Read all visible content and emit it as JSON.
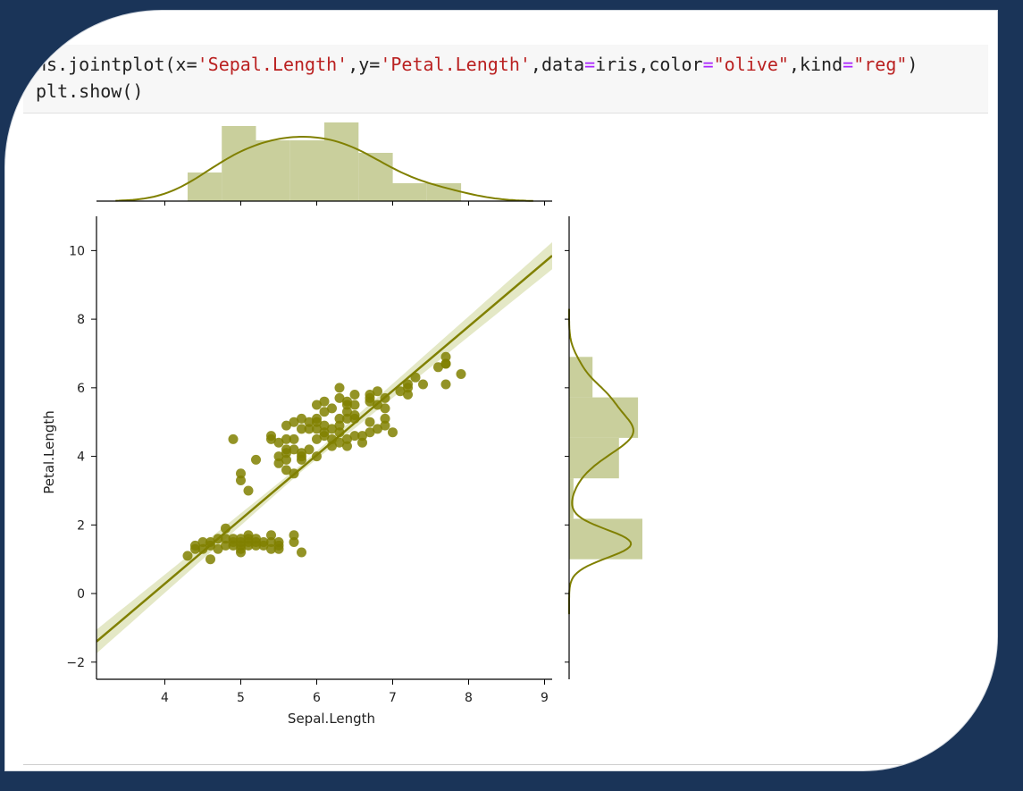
{
  "code": {
    "line1": {
      "fn_prefix": "ns.jointplot(x=",
      "x_arg": "'Sepal.Length'",
      "sep1": ",y=",
      "y_arg": "'Petal.Length'",
      "sep2": ",data",
      "eq1": "=",
      "data_arg": "iris",
      "sep3": ",color",
      "eq2": "=",
      "color_arg": "\"olive\"",
      "sep4": ",kind",
      "eq3": "=",
      "kind_arg": "\"reg\"",
      "suffix": ")"
    },
    "line2": "plt.show()"
  },
  "colors": {
    "accent": "#808000",
    "fill": "#c9cf9c",
    "band": "#e4e8c6",
    "background": "#1a3458"
  },
  "chart_data": {
    "type": "scatter",
    "xlabel": "Sepal.Length",
    "ylabel": "Petal.Length",
    "xlim": [
      3.1,
      9.1
    ],
    "ylim": [
      -2.5,
      11
    ],
    "xticks": [
      4,
      5,
      6,
      7,
      8,
      9
    ],
    "yticks": [
      -2,
      0,
      2,
      4,
      6,
      8,
      10
    ],
    "regression": {
      "x": [
        3.1,
        9.1
      ],
      "y": [
        -1.4,
        9.85
      ]
    },
    "points": [
      [
        4.3,
        1.1
      ],
      [
        4.4,
        1.3
      ],
      [
        4.4,
        1.4
      ],
      [
        4.5,
        1.3
      ],
      [
        4.6,
        1.4
      ],
      [
        4.6,
        1.0
      ],
      [
        4.6,
        1.5
      ],
      [
        4.7,
        1.3
      ],
      [
        4.7,
        1.6
      ],
      [
        4.8,
        1.6
      ],
      [
        4.8,
        1.4
      ],
      [
        4.8,
        1.9
      ],
      [
        4.9,
        1.4
      ],
      [
        4.9,
        1.5
      ],
      [
        4.9,
        4.5
      ],
      [
        5.0,
        1.4
      ],
      [
        5.0,
        1.6
      ],
      [
        5.0,
        1.2
      ],
      [
        5.0,
        3.3
      ],
      [
        5.0,
        1.5
      ],
      [
        5.1,
        1.4
      ],
      [
        5.1,
        1.5
      ],
      [
        5.1,
        1.7
      ],
      [
        5.1,
        3.0
      ],
      [
        5.2,
        1.5
      ],
      [
        5.2,
        1.4
      ],
      [
        5.2,
        3.9
      ],
      [
        5.3,
        1.5
      ],
      [
        5.4,
        1.7
      ],
      [
        5.4,
        1.5
      ],
      [
        5.4,
        4.5
      ],
      [
        5.5,
        1.3
      ],
      [
        5.5,
        4.0
      ],
      [
        5.5,
        3.8
      ],
      [
        5.5,
        4.4
      ],
      [
        5.6,
        4.5
      ],
      [
        5.6,
        3.6
      ],
      [
        5.6,
        4.2
      ],
      [
        5.6,
        4.9
      ],
      [
        5.7,
        1.5
      ],
      [
        5.7,
        4.2
      ],
      [
        5.7,
        5.0
      ],
      [
        5.7,
        3.5
      ],
      [
        5.8,
        1.2
      ],
      [
        5.8,
        4.1
      ],
      [
        5.8,
        5.1
      ],
      [
        5.9,
        4.8
      ],
      [
        5.9,
        4.2
      ],
      [
        6.0,
        4.0
      ],
      [
        6.0,
        5.1
      ],
      [
        6.0,
        4.5
      ],
      [
        6.0,
        4.8
      ],
      [
        6.1,
        4.7
      ],
      [
        6.1,
        4.6
      ],
      [
        6.1,
        5.6
      ],
      [
        6.2,
        4.5
      ],
      [
        6.2,
        5.4
      ],
      [
        6.3,
        4.9
      ],
      [
        6.3,
        6.0
      ],
      [
        6.3,
        5.1
      ],
      [
        6.3,
        4.4
      ],
      [
        6.4,
        4.5
      ],
      [
        6.4,
        5.3
      ],
      [
        6.4,
        5.6
      ],
      [
        6.5,
        4.6
      ],
      [
        6.5,
        5.2
      ],
      [
        6.5,
        5.8
      ],
      [
        6.6,
        4.4
      ],
      [
        6.7,
        5.7
      ],
      [
        6.7,
        5.0
      ],
      [
        6.7,
        4.7
      ],
      [
        6.8,
        4.8
      ],
      [
        6.8,
        5.9
      ],
      [
        6.9,
        5.1
      ],
      [
        6.9,
        5.7
      ],
      [
        7.0,
        4.7
      ],
      [
        7.1,
        5.9
      ],
      [
        7.2,
        6.1
      ],
      [
        7.2,
        6.0
      ],
      [
        7.3,
        6.3
      ],
      [
        7.4,
        6.1
      ],
      [
        7.6,
        6.6
      ],
      [
        7.7,
        6.7
      ],
      [
        7.7,
        6.9
      ],
      [
        7.7,
        6.1
      ],
      [
        7.9,
        6.4
      ],
      [
        4.5,
        1.5
      ],
      [
        4.9,
        1.6
      ],
      [
        5.0,
        1.3
      ],
      [
        5.1,
        1.6
      ],
      [
        5.2,
        1.6
      ],
      [
        5.3,
        1.4
      ],
      [
        5.4,
        1.3
      ],
      [
        5.5,
        1.4
      ],
      [
        5.7,
        1.7
      ],
      [
        5.5,
        1.5
      ],
      [
        5.0,
        3.5
      ],
      [
        5.4,
        4.6
      ],
      [
        5.6,
        4.1
      ],
      [
        5.6,
        3.9
      ],
      [
        5.7,
        4.5
      ],
      [
        5.8,
        3.9
      ],
      [
        5.8,
        4.0
      ],
      [
        6.0,
        5.0
      ],
      [
        6.1,
        4.9
      ],
      [
        6.2,
        4.8
      ],
      [
        6.2,
        4.3
      ],
      [
        6.3,
        4.7
      ],
      [
        6.4,
        5.5
      ],
      [
        6.4,
        4.3
      ],
      [
        6.5,
        5.5
      ],
      [
        6.6,
        4.6
      ],
      [
        6.7,
        5.8
      ],
      [
        6.8,
        5.5
      ],
      [
        6.9,
        4.9
      ],
      [
        6.9,
        5.4
      ],
      [
        7.2,
        5.8
      ],
      [
        7.7,
        6.7
      ],
      [
        6.1,
        5.3
      ],
      [
        6.0,
        5.5
      ],
      [
        5.9,
        5.0
      ],
      [
        6.3,
        5.7
      ],
      [
        6.7,
        5.6
      ],
      [
        6.5,
        5.1
      ],
      [
        5.8,
        4.8
      ],
      [
        6.4,
        5.1
      ]
    ],
    "top_hist": {
      "edges": [
        4.3,
        4.75,
        5.2,
        5.65,
        6.1,
        6.55,
        7.0,
        7.45,
        7.9
      ],
      "counts": [
        16,
        42,
        34,
        34,
        44,
        27,
        10,
        10
      ]
    },
    "right_hist": {
      "edges": [
        1.0,
        2.18,
        3.36,
        4.54,
        5.72,
        6.9
      ],
      "counts": [
        50,
        3,
        34,
        47,
        16
      ]
    }
  }
}
